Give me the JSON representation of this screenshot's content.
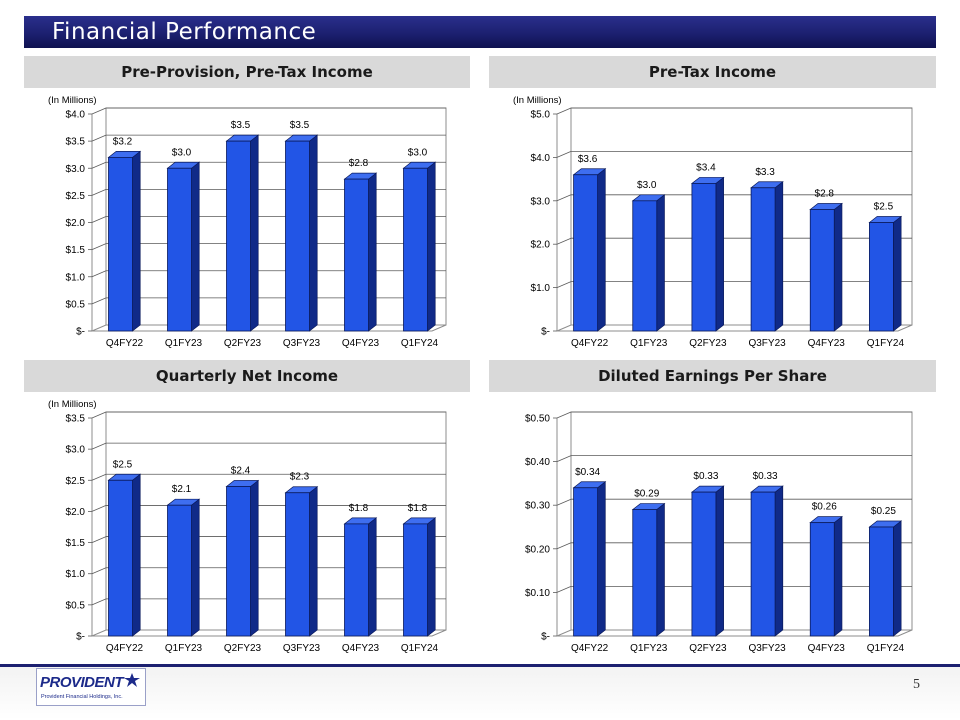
{
  "page": {
    "title": "Financial Performance",
    "page_number": "5",
    "logo": {
      "name": "PROVIDENT",
      "subtitle": "Provident Financial Holdings, Inc."
    }
  },
  "colors": {
    "bar_front": "#2255e6",
    "bar_side": "#102a88",
    "bar_top": "#3e6ef0",
    "title_bg": "#1c2070",
    "header_bg": "#d9d9d9"
  },
  "chart_data": [
    {
      "type": "bar",
      "title": "Pre-Provision, Pre-Tax Income",
      "unit_note": "(In Millions)",
      "categories": [
        "Q4FY22",
        "Q1FY23",
        "Q2FY23",
        "Q3FY23",
        "Q4FY23",
        "Q1FY24"
      ],
      "values": [
        3.2,
        3.0,
        3.5,
        3.5,
        2.8,
        3.0
      ],
      "data_labels": [
        "$3.2",
        "$3.0",
        "$3.5",
        "$3.5",
        "$2.8",
        "$3.0"
      ],
      "ylim": [
        0,
        4.0
      ],
      "yticks": [
        0,
        0.5,
        1.0,
        1.5,
        2.0,
        2.5,
        3.0,
        3.5,
        4.0
      ],
      "ytick_labels": [
        "$-",
        "$0.5",
        "$1.0",
        "$1.5",
        "$2.0",
        "$2.5",
        "$3.0",
        "$3.5",
        "$4.0"
      ],
      "grid": true
    },
    {
      "type": "bar",
      "title": "Pre-Tax Income",
      "unit_note": "(In Millions)",
      "categories": [
        "Q4FY22",
        "Q1FY23",
        "Q2FY23",
        "Q3FY23",
        "Q4FY23",
        "Q1FY24"
      ],
      "values": [
        3.6,
        3.0,
        3.4,
        3.3,
        2.8,
        2.5
      ],
      "data_labels": [
        "$3.6",
        "$3.0",
        "$3.4",
        "$3.3",
        "$2.8",
        "$2.5"
      ],
      "ylim": [
        0,
        5.0
      ],
      "yticks": [
        0,
        1.0,
        2.0,
        3.0,
        4.0,
        5.0
      ],
      "ytick_labels": [
        "$-",
        "$1.0",
        "$2.0",
        "$3.0",
        "$4.0",
        "$5.0"
      ],
      "grid": true
    },
    {
      "type": "bar",
      "title": "Quarterly Net Income",
      "unit_note": "(In Millions)",
      "categories": [
        "Q4FY22",
        "Q1FY23",
        "Q2FY23",
        "Q3FY23",
        "Q4FY23",
        "Q1FY24"
      ],
      "values": [
        2.5,
        2.1,
        2.4,
        2.3,
        1.8,
        1.8
      ],
      "data_labels": [
        "$2.5",
        "$2.1",
        "$2.4",
        "$2.3",
        "$1.8",
        "$1.8"
      ],
      "ylim": [
        0,
        3.5
      ],
      "yticks": [
        0,
        0.5,
        1.0,
        1.5,
        2.0,
        2.5,
        3.0,
        3.5
      ],
      "ytick_labels": [
        "$-",
        "$0.5",
        "$1.0",
        "$1.5",
        "$2.0",
        "$2.5",
        "$3.0",
        "$3.5"
      ],
      "grid": true
    },
    {
      "type": "bar",
      "title": "Diluted Earnings Per Share",
      "unit_note": "",
      "categories": [
        "Q4FY22",
        "Q1FY23",
        "Q2FY23",
        "Q3FY23",
        "Q4FY23",
        "Q1FY24"
      ],
      "values": [
        0.34,
        0.29,
        0.33,
        0.33,
        0.26,
        0.25
      ],
      "data_labels": [
        "$0.34",
        "$0.29",
        "$0.33",
        "$0.33",
        "$0.26",
        "$0.25"
      ],
      "ylim": [
        0,
        0.5
      ],
      "yticks": [
        0,
        0.1,
        0.2,
        0.3,
        0.4,
        0.5
      ],
      "ytick_labels": [
        "$-",
        "$0.10",
        "$0.20",
        "$0.30",
        "$0.40",
        "$0.50"
      ],
      "grid": true
    }
  ]
}
